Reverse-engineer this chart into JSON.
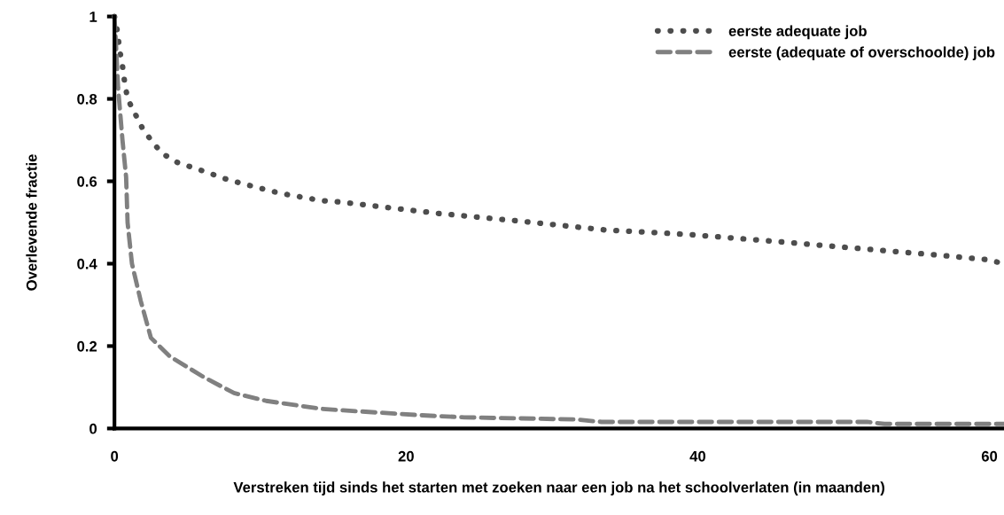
{
  "chart_data": {
    "type": "line",
    "xlabel": "Verstreken tijd sinds het starten met zoeken naar een job na het schoolverlaten (in maanden)",
    "ylabel": "Overlevende fractie",
    "xlim": [
      0,
      61
    ],
    "xticks": [
      0,
      20,
      40,
      60
    ],
    "ylim": [
      0,
      1
    ],
    "yticks": [
      0,
      0.2,
      0.4,
      0.6,
      0.8,
      1
    ],
    "grid": false,
    "legend": "top right",
    "series": [
      {
        "name": "eerste adequate job",
        "color": "#4d4d4d",
        "line_style": "dotted",
        "x": [
          0,
          0.2,
          0.35,
          0.55,
          0.7,
          0.9,
          1.4,
          1.9,
          2.6,
          3.3,
          4.3,
          5.4,
          6.5,
          7.5,
          8.6,
          9.8,
          10.9,
          12.1,
          13.1,
          14.2,
          15.4,
          22.2,
          27.9,
          33.6,
          39.3,
          45.0,
          50.7,
          56.4,
          59.8,
          61
        ],
        "values": [
          1.0,
          0.964,
          0.92,
          0.88,
          0.84,
          0.8,
          0.765,
          0.73,
          0.695,
          0.667,
          0.646,
          0.633,
          0.62,
          0.607,
          0.596,
          0.585,
          0.575,
          0.566,
          0.56,
          0.553,
          0.55,
          0.522,
          0.503,
          0.482,
          0.471,
          0.455,
          0.438,
          0.421,
          0.41,
          0.4
        ]
      },
      {
        "name": "eerste (adequate of overschoolde) job",
        "color": "#808080",
        "line_style": "dashed",
        "x": [
          0,
          0.1,
          0.25,
          0.55,
          0.8,
          0.9,
          1.2,
          1.8,
          2.5,
          3.8,
          6.1,
          8.2,
          10.4,
          14.1,
          15.7,
          21.1,
          24.0,
          31.6,
          33.4,
          51.6,
          52.8,
          61
        ],
        "values": [
          1.0,
          0.935,
          0.827,
          0.7,
          0.61,
          0.5,
          0.4,
          0.31,
          0.22,
          0.175,
          0.125,
          0.086,
          0.067,
          0.048,
          0.044,
          0.032,
          0.027,
          0.022,
          0.016,
          0.016,
          0.011,
          0.011
        ]
      }
    ]
  }
}
